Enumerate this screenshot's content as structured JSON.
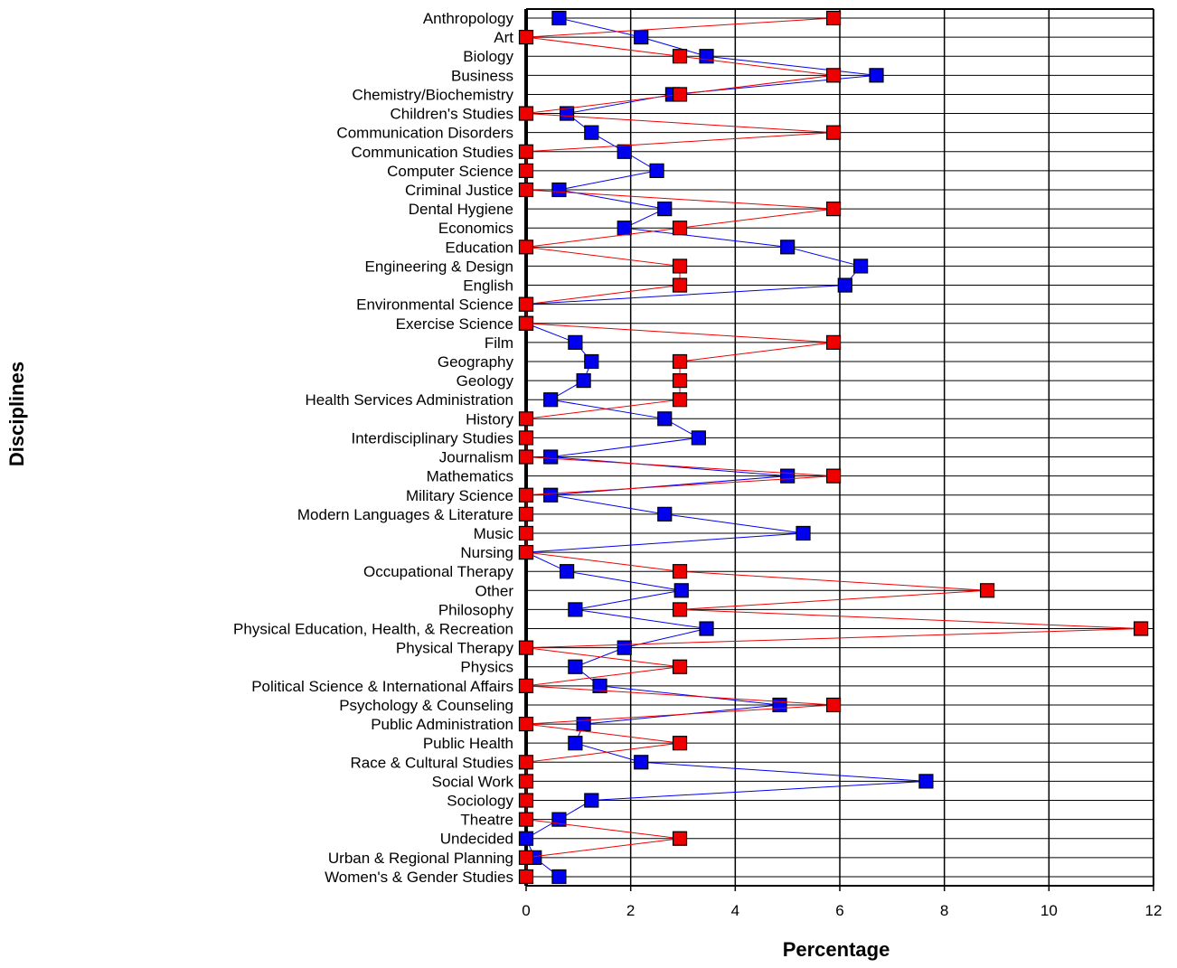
{
  "chart_data": {
    "type": "line",
    "orientation": "horizontal",
    "xlabel": "Percentage",
    "ylabel": "Disciplines",
    "xlim": [
      0,
      12
    ],
    "xticks": [
      0,
      2,
      4,
      6,
      8,
      10,
      12
    ],
    "grid": true,
    "categories": [
      "Anthropology",
      "Art",
      "Biology",
      "Business",
      "Chemistry/Biochemistry",
      "Children's Studies",
      "Communication Disorders",
      "Communication Studies",
      "Computer Science",
      "Criminal Justice",
      "Dental Hygiene",
      "Economics",
      "Education",
      "Engineering & Design",
      "English",
      "Environmental Science",
      "Exercise Science",
      "Film",
      "Geography",
      "Geology",
      "Health Services Administration",
      "History",
      "Interdisciplinary Studies",
      "Journalism",
      "Mathematics",
      "Military Science",
      "Modern Languages & Literature",
      "Music",
      "Nursing",
      "Occupational Therapy",
      "Other",
      "Philosophy",
      "Physical Education, Health, & Recreation",
      "Physical Therapy",
      "Physics",
      "Political Science & International Affairs",
      "Psychology & Counseling",
      "Public Administration",
      "Public Health",
      "Race & Cultural Studies",
      "Social Work",
      "Sociology",
      "Theatre",
      "Undecided",
      "Urban & Regional Planning",
      "Women's & Gender Studies"
    ],
    "series": [
      {
        "color": "#0000ee",
        "marker": "square",
        "values": [
          0.63,
          2.2,
          3.45,
          6.7,
          2.8,
          0.78,
          1.25,
          1.88,
          2.5,
          0.63,
          2.65,
          1.88,
          5.0,
          6.4,
          6.1,
          0.0,
          0.0,
          0.94,
          1.25,
          1.1,
          0.47,
          2.65,
          3.3,
          0.47,
          5.0,
          0.47,
          2.65,
          5.3,
          0.0,
          0.78,
          2.97,
          0.94,
          3.45,
          1.88,
          0.94,
          1.41,
          4.85,
          1.1,
          0.94,
          2.2,
          7.65,
          1.25,
          0.63,
          0.0,
          0.16,
          0.63
        ]
      },
      {
        "color": "#ee0000",
        "marker": "square",
        "values": [
          5.88,
          0.0,
          2.94,
          5.88,
          2.94,
          0.0,
          5.88,
          0.0,
          0.0,
          0.0,
          5.88,
          2.94,
          0.0,
          2.94,
          2.94,
          0.0,
          0.0,
          5.88,
          2.94,
          2.94,
          2.94,
          0.0,
          0.0,
          0.0,
          5.88,
          0.0,
          0.0,
          0.0,
          0.0,
          2.94,
          8.82,
          2.94,
          11.76,
          0.0,
          2.94,
          0.0,
          5.88,
          0.0,
          2.94,
          0.0,
          0.0,
          0.0,
          0.0,
          2.94,
          0.0,
          0.0
        ]
      }
    ]
  }
}
